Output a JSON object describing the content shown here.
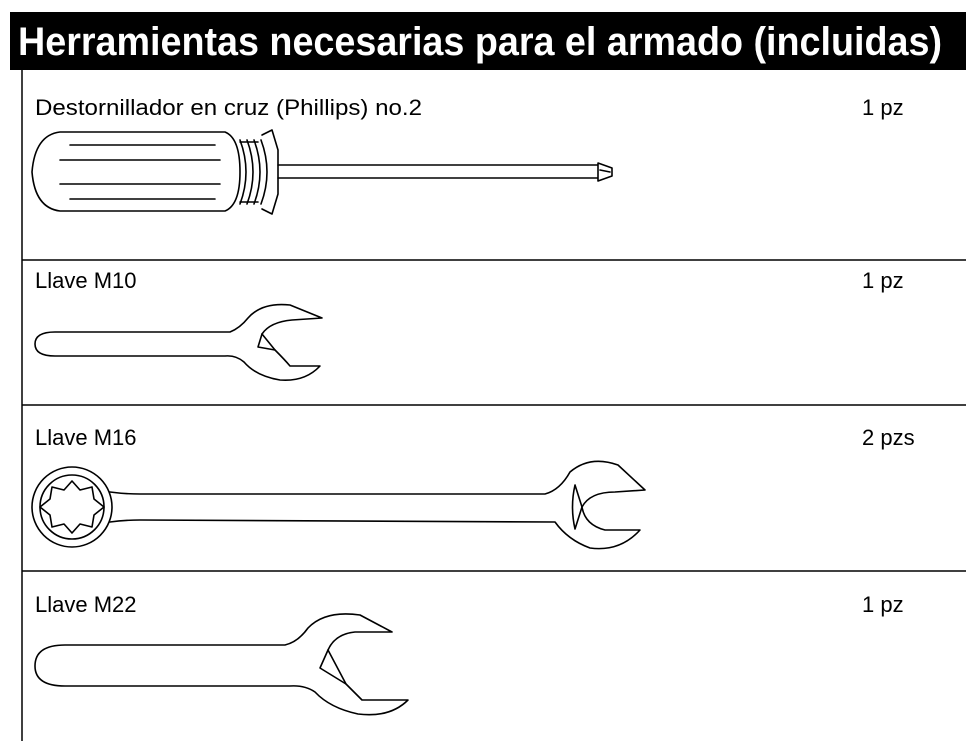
{
  "header": {
    "title": "Herramientas necesarias para el armado (incluidas)"
  },
  "items": [
    {
      "name": "Destornillador en cruz (Phillips) no.2",
      "quantity": "1 pz"
    },
    {
      "name": "Llave M10",
      "quantity": "1 pz"
    },
    {
      "name": "Llave M16",
      "quantity": "2 pzs"
    },
    {
      "name": "Llave M22",
      "quantity": "1 pz"
    }
  ]
}
